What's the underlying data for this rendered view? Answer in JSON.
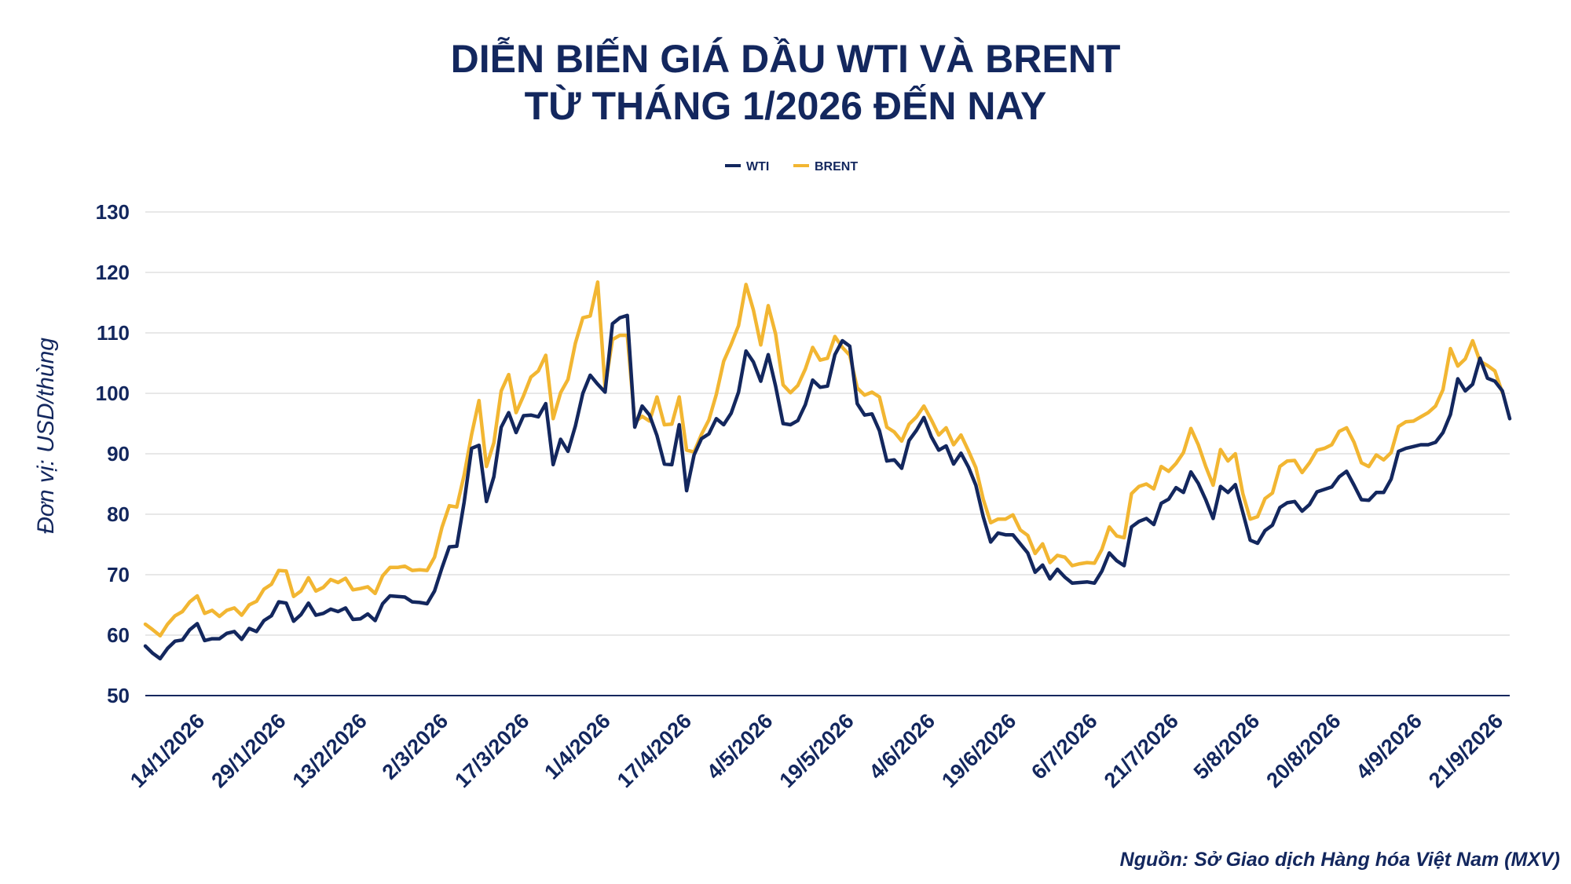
{
  "chart_data": {
    "type": "line",
    "title_lines": [
      "DIỄN BIẾN GIÁ DẦU WTI VÀ BRENT",
      "TỪ THÁNG 1/2026 ĐẾN NAY"
    ],
    "ylabel": "Đơn vị: USD/thùng",
    "xlabel": "",
    "ylim": [
      50,
      130
    ],
    "y_ticks": [
      "50",
      "60",
      "70",
      "80",
      "90",
      "100",
      "110",
      "120",
      "130"
    ],
    "x_tick_labels": [
      "14/1/2026",
      "29/1/2026",
      "13/2/2026",
      "2/3/2026",
      "17/3/2026",
      "1/4/2026",
      "17/4/2026",
      "4/5/2026",
      "19/5/2026",
      "4/6/2026",
      "19/6/2026",
      "6/7/2026",
      "21/7/2026",
      "5/8/2026",
      "20/8/2026",
      "4/9/2026",
      "21/9/2026"
    ],
    "grid": "horizontal",
    "legend_position": "top-center",
    "source": "Nguồn: Sở Giao dịch Hàng hóa Việt Nam (MXV)",
    "series": [
      {
        "name": "WTI",
        "color": "#13275e",
        "values": [
          58.2,
          57.0,
          56.1,
          57.8,
          59.0,
          59.2,
          60.9,
          61.9,
          59.1,
          59.4,
          59.4,
          60.3,
          60.6,
          59.3,
          61.1,
          60.6,
          62.4,
          63.2,
          65.5,
          65.3,
          62.3,
          63.4,
          65.3,
          63.3,
          63.6,
          64.3,
          63.9,
          64.5,
          62.6,
          62.7,
          63.5,
          62.4,
          65.2,
          66.5,
          66.4,
          66.3,
          65.5,
          65.4,
          65.2,
          67.3,
          71.1,
          74.6,
          74.7,
          82.0,
          90.9,
          91.4,
          82.1,
          86.2,
          94.4,
          96.8,
          93.5,
          96.3,
          96.4,
          96.1,
          98.3,
          88.2,
          92.4,
          90.4,
          94.6,
          100.0,
          103.0,
          101.5,
          100.2,
          111.5,
          112.5,
          112.9,
          94.4,
          97.9,
          96.4,
          93.0,
          88.3,
          88.2,
          94.8,
          83.9,
          89.8,
          92.5,
          93.3,
          95.8,
          94.8,
          96.7,
          100.2,
          107.0,
          105.2,
          102.0,
          106.4,
          101.2,
          95.0,
          94.8,
          95.5,
          98.1,
          102.2,
          101.0,
          101.2,
          106.4,
          108.7,
          107.8,
          98.3,
          96.4,
          96.6,
          93.8,
          88.8,
          89.0,
          87.6,
          92.2,
          93.9,
          96.0,
          92.8,
          90.6,
          91.3,
          88.3,
          90.1,
          87.8,
          84.8,
          79.6,
          75.4,
          76.9,
          76.6,
          76.6,
          75.1,
          73.6,
          70.4,
          71.6,
          69.3,
          70.9,
          69.6,
          68.6,
          68.7,
          68.8,
          68.6,
          70.6,
          73.6,
          72.3,
          71.5,
          77.9,
          78.8,
          79.3,
          78.3,
          81.8,
          82.5,
          84.4,
          83.6,
          87.0,
          85.1,
          82.4,
          79.3,
          84.6,
          83.6,
          84.9,
          80.3,
          75.7,
          75.2,
          77.3,
          78.2,
          81.1,
          81.9,
          82.1,
          80.5,
          81.6,
          83.7,
          84.1,
          84.5,
          86.2,
          87.1,
          84.8,
          82.4,
          82.3,
          83.6,
          83.6,
          85.8,
          90.4,
          90.9,
          91.2,
          91.5,
          91.5,
          91.9,
          93.5,
          96.5,
          102.4,
          100.4,
          101.5,
          105.8,
          102.5,
          102.0,
          100.4,
          95.8
        ]
      },
      {
        "name": "BRENT",
        "color": "#f2b632",
        "values": [
          61.8,
          60.9,
          59.9,
          61.8,
          63.2,
          63.9,
          65.5,
          66.5,
          63.6,
          64.1,
          63.1,
          64.1,
          64.5,
          63.3,
          65.0,
          65.6,
          67.6,
          68.4,
          70.7,
          70.6,
          66.4,
          67.3,
          69.5,
          67.3,
          67.9,
          69.2,
          68.7,
          69.4,
          67.5,
          67.7,
          68.0,
          66.9,
          69.8,
          71.2,
          71.2,
          71.4,
          70.7,
          70.8,
          70.7,
          72.9,
          77.8,
          81.4,
          81.2,
          86.5,
          93.2,
          98.8,
          87.9,
          91.8,
          100.4,
          103.1,
          96.8,
          99.6,
          102.7,
          103.7,
          106.3,
          95.8,
          100.1,
          102.3,
          108.3,
          112.5,
          112.8,
          118.4,
          101.0,
          108.9,
          109.6,
          109.6,
          95.2,
          96.2,
          95.4,
          99.4,
          94.8,
          94.9,
          99.4,
          90.6,
          90.3,
          93.2,
          95.6,
          99.8,
          105.3,
          108.1,
          111.2,
          118.0,
          113.8,
          108.0,
          114.5,
          109.8,
          101.4,
          100.1,
          101.3,
          104.0,
          107.6,
          105.5,
          105.8,
          109.4,
          107.6,
          106.3,
          100.9,
          99.7,
          100.2,
          99.4,
          94.4,
          93.6,
          92.1,
          94.9,
          96.1,
          97.9,
          95.6,
          93.1,
          94.3,
          91.5,
          93.1,
          90.5,
          87.7,
          82.5,
          78.6,
          79.2,
          79.2,
          79.9,
          77.4,
          76.5,
          73.5,
          75.1,
          72.0,
          73.2,
          72.9,
          71.5,
          71.8,
          72.0,
          71.9,
          74.2,
          77.9,
          76.4,
          76.1,
          83.4,
          84.6,
          85.0,
          84.2,
          87.9,
          87.1,
          88.4,
          90.2,
          94.2,
          91.5,
          87.9,
          84.8,
          90.7,
          88.8,
          90.0,
          83.4,
          79.2,
          79.6,
          82.6,
          83.5,
          87.9,
          88.8,
          88.9,
          86.9,
          88.5,
          90.6,
          90.9,
          91.5,
          93.7,
          94.3,
          91.9,
          88.5,
          87.9,
          89.8,
          89.0,
          90.2,
          94.5,
          95.3,
          95.4,
          96.1,
          96.8,
          97.9,
          100.6,
          107.4,
          104.5,
          105.7,
          108.7,
          105.3,
          104.6,
          103.7,
          100.1
        ]
      }
    ]
  }
}
